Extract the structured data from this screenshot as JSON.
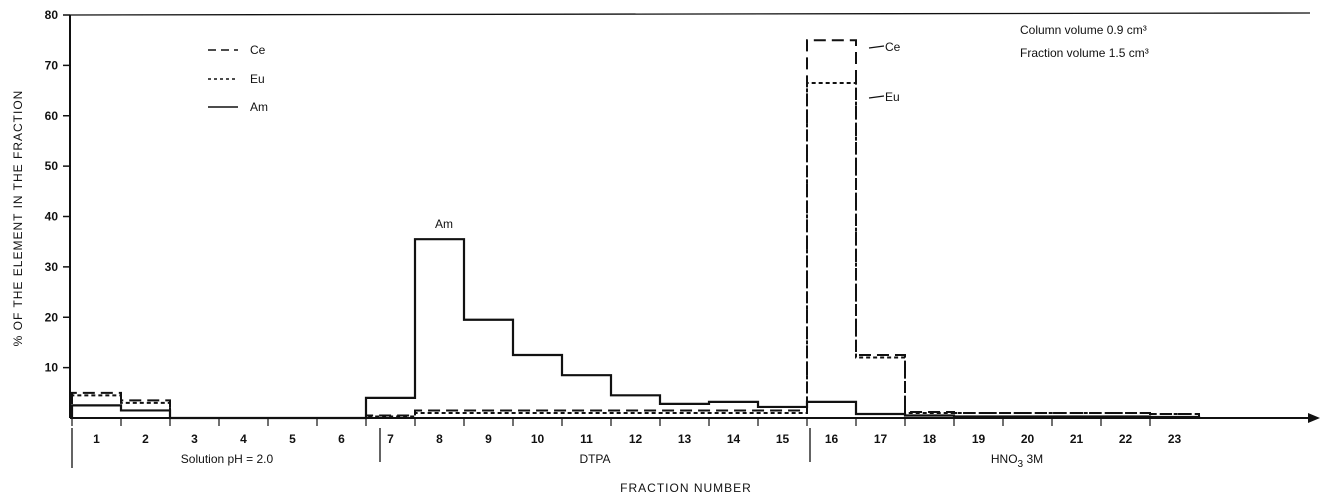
{
  "chart_data": {
    "type": "step-line",
    "xlabel": "FRACTION NUMBER",
    "ylabel": "% OF THE ELEMENT IN THE FRACTION",
    "ylim": [
      0,
      80
    ],
    "yticks": [
      10,
      20,
      30,
      40,
      50,
      60,
      70,
      80
    ],
    "categories": [
      "1",
      "2",
      "3",
      "4",
      "5",
      "6",
      "7",
      "8",
      "9",
      "10",
      "11",
      "12",
      "13",
      "14",
      "15",
      "16",
      "17",
      "18",
      "19",
      "20",
      "21",
      "22",
      "23"
    ],
    "series": [
      {
        "name": "Ce",
        "style": "dashed",
        "values": [
          5,
          3.5,
          0,
          0,
          0,
          0,
          0.5,
          1.5,
          1.5,
          1.5,
          1.5,
          1.5,
          1.5,
          1.5,
          1.5,
          75,
          12.5,
          1.2,
          1,
          1,
          1,
          1,
          0.8
        ]
      },
      {
        "name": "Eu",
        "style": "dotted",
        "values": [
          4.5,
          3,
          0,
          0,
          0,
          0,
          0.3,
          1,
          1,
          1,
          1,
          1,
          1,
          1,
          1,
          66.5,
          12,
          1,
          1,
          1,
          1,
          1,
          0.8
        ]
      },
      {
        "name": "Am",
        "style": "solid",
        "values": [
          2.5,
          1.5,
          0,
          0,
          0,
          0,
          4,
          35.5,
          19.5,
          12.5,
          8.5,
          4.5,
          2.8,
          3.2,
          2.2,
          3.2,
          0.8,
          0.5,
          0.3,
          0.3,
          0.3,
          0.3,
          0.2
        ]
      }
    ],
    "series_labels": [
      "Ce",
      "Eu",
      "Am"
    ],
    "regions": [
      "Solution pH = 2.0",
      "DTPA",
      "HNO3 3M"
    ],
    "annotations": {
      "column_volume": "Column volume  0.9 cm³",
      "fraction_volume": "Fraction volume  1.5 cm³"
    }
  }
}
